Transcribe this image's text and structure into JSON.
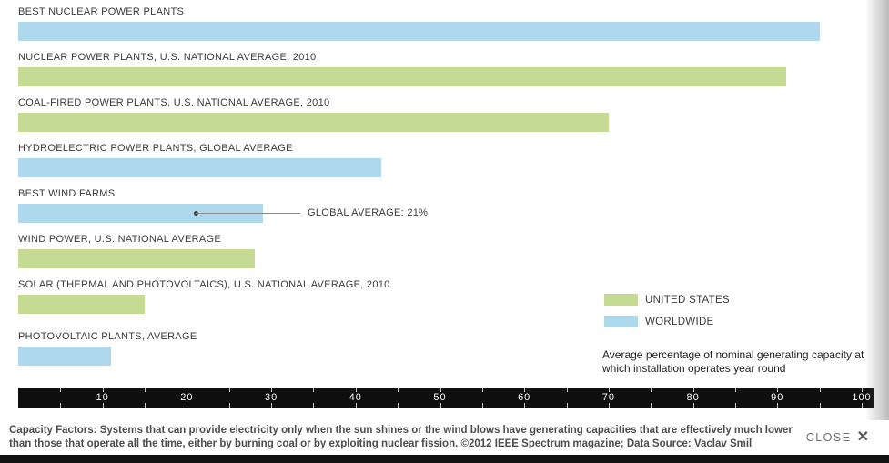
{
  "chart_data": {
    "type": "bar",
    "orientation": "horizontal",
    "title": "",
    "xlabel": "",
    "ylabel": "",
    "xlim": [
      0,
      100
    ],
    "axis": {
      "max": 100,
      "major_step": 10,
      "minor_step": 5,
      "major_tick_labels": [
        "10",
        "20",
        "30",
        "40",
        "50",
        "60",
        "70",
        "80",
        "90",
        "100"
      ]
    },
    "bars": [
      {
        "label": "BEST NUCLEAR POWER PLANTS",
        "value": 95,
        "series": "worldwide"
      },
      {
        "label": "NUCLEAR POWER PLANTS, U.S. NATIONAL AVERAGE, 2010",
        "value": 91,
        "series": "united-states"
      },
      {
        "label": "COAL-FIRED POWER PLANTS, U.S. NATIONAL AVERAGE, 2010",
        "value": 70,
        "series": "united-states"
      },
      {
        "label": "HYDROELECTRIC POWER PLANTS, GLOBAL AVERAGE",
        "value": 43,
        "series": "worldwide"
      },
      {
        "label": "BEST WIND FARMS",
        "value": 29,
        "series": "worldwide",
        "annotation": {
          "text": "GLOBAL AVERAGE: 21%",
          "at_value": 21
        }
      },
      {
        "label": "WIND POWER, U.S. NATIONAL AVERAGE",
        "value": 28,
        "series": "united-states"
      },
      {
        "label": "SOLAR (THERMAL AND PHOTOVOLTAICS), U.S. NATIONAL AVERAGE, 2010",
        "value": 15,
        "series": "united-states"
      },
      {
        "label": "PHOTOVOLTAIC PLANTS, AVERAGE",
        "value": 11,
        "series": "worldwide"
      }
    ],
    "colors": {
      "united-states": "#c5db94",
      "worldwide": "#aed8eb"
    },
    "legend": [
      {
        "key": "united-states",
        "label": "UNITED STATES",
        "color": "#c5db94"
      },
      {
        "key": "worldwide",
        "label": "WORLDWIDE",
        "color": "#aed8eb"
      }
    ],
    "legend_position": "right",
    "grid": false,
    "note": "Average percentage of nominal generating capacity at which installation operates year round"
  },
  "caption": {
    "text": "Capacity Factors: Systems that can provide electricity only when the sun shines or the wind blows have generating capacities that are effectively much lower than those that operate all the time, either by burning coal or by exploiting nuclear fission. ©2012 IEEE Spectrum magazine; Data Source: Vaclav Smil"
  },
  "overlay": {
    "close_label": "CLOSE",
    "close_icon": "✕"
  }
}
